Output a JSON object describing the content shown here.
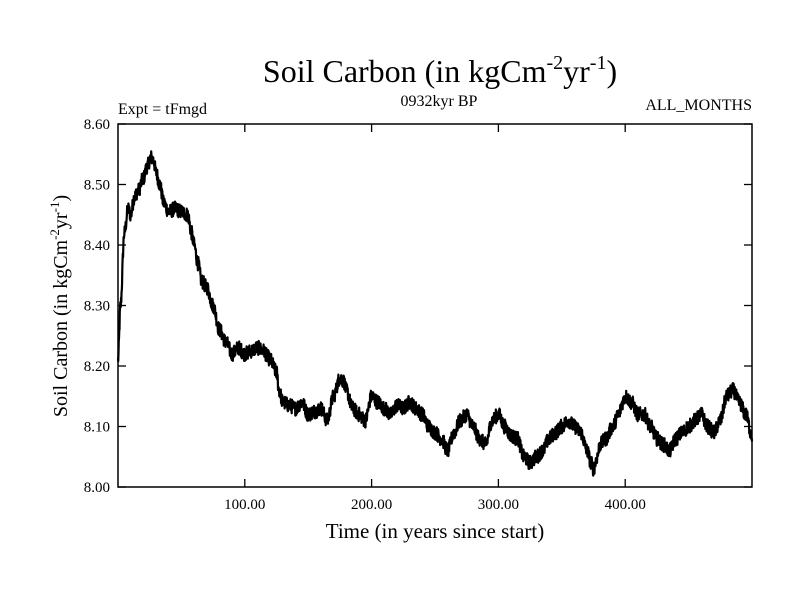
{
  "chart_data": {
    "type": "line",
    "title": "Soil Carbon (in kgCm",
    "title_unit_exp1": "-2",
    "title_unit_mid": "yr",
    "title_unit_exp2": "-1",
    "title_close": ")",
    "left_label": "Expt = tFmgd",
    "center_label": "0932kyr BP",
    "right_label": "ALL_MONTHS",
    "xlabel": "Time (in years since start)",
    "ylabel": "Soil Carbon (in kgCm",
    "ylabel_exp1": "-2",
    "ylabel_mid": "yr",
    "ylabel_exp2": "-1",
    "ylabel_close": ")",
    "xlim": [
      0,
      500
    ],
    "ylim": [
      8.0,
      8.6
    ],
    "x_ticks": [
      100,
      200,
      300,
      400
    ],
    "x_tick_labels": [
      "100.00",
      "200.00",
      "300.00",
      "400.00"
    ],
    "y_ticks": [
      8.0,
      8.1,
      8.2,
      8.3,
      8.4,
      8.5,
      8.6
    ],
    "y_tick_labels": [
      "8.00",
      "8.10",
      "8.20",
      "8.30",
      "8.40",
      "8.50",
      "8.60"
    ],
    "grid": false,
    "series": [
      {
        "name": "Soil Carbon",
        "color": "#000000",
        "noise_amplitude": 0.012,
        "x": [
          0,
          2,
          5,
          8,
          10,
          13,
          16,
          20,
          23,
          26,
          28,
          30,
          33,
          36,
          40,
          45,
          50,
          55,
          58,
          60,
          63,
          66,
          70,
          75,
          80,
          85,
          90,
          95,
          100,
          105,
          110,
          115,
          118,
          120,
          125,
          127,
          130,
          135,
          140,
          145,
          150,
          155,
          160,
          165,
          170,
          175,
          178,
          180,
          185,
          190,
          195,
          200,
          205,
          210,
          215,
          220,
          225,
          230,
          235,
          240,
          245,
          250,
          255,
          260,
          265,
          270,
          275,
          280,
          285,
          290,
          295,
          300,
          305,
          310,
          315,
          320,
          325,
          330,
          335,
          340,
          345,
          350,
          355,
          360,
          365,
          370,
          373,
          375,
          378,
          380,
          385,
          390,
          395,
          398,
          400,
          405,
          410,
          415,
          420,
          425,
          430,
          435,
          440,
          445,
          450,
          455,
          460,
          465,
          470,
          475,
          480,
          485,
          490,
          495,
          500
        ],
        "y": [
          8.21,
          8.3,
          8.42,
          8.46,
          8.45,
          8.48,
          8.49,
          8.51,
          8.53,
          8.545,
          8.54,
          8.52,
          8.5,
          8.47,
          8.455,
          8.46,
          8.455,
          8.45,
          8.42,
          8.4,
          8.37,
          8.34,
          8.33,
          8.3,
          8.26,
          8.24,
          8.22,
          8.23,
          8.22,
          8.225,
          8.23,
          8.225,
          8.215,
          8.21,
          8.19,
          8.16,
          8.14,
          8.135,
          8.13,
          8.14,
          8.12,
          8.125,
          8.13,
          8.11,
          8.15,
          8.18,
          8.175,
          8.16,
          8.13,
          8.12,
          8.11,
          8.15,
          8.14,
          8.13,
          8.12,
          8.135,
          8.13,
          8.14,
          8.13,
          8.12,
          8.1,
          8.09,
          8.08,
          8.06,
          8.09,
          8.11,
          8.12,
          8.1,
          8.08,
          8.07,
          8.11,
          8.12,
          8.1,
          8.085,
          8.08,
          8.05,
          8.04,
          8.05,
          8.06,
          8.08,
          8.09,
          8.1,
          8.11,
          8.1,
          8.09,
          8.06,
          8.04,
          8.03,
          8.05,
          8.07,
          8.08,
          8.1,
          8.12,
          8.14,
          8.15,
          8.14,
          8.12,
          8.12,
          8.1,
          8.08,
          8.07,
          8.06,
          8.08,
          8.09,
          8.1,
          8.11,
          8.12,
          8.1,
          8.09,
          8.11,
          8.15,
          8.16,
          8.14,
          8.12,
          8.085
        ]
      }
    ]
  }
}
